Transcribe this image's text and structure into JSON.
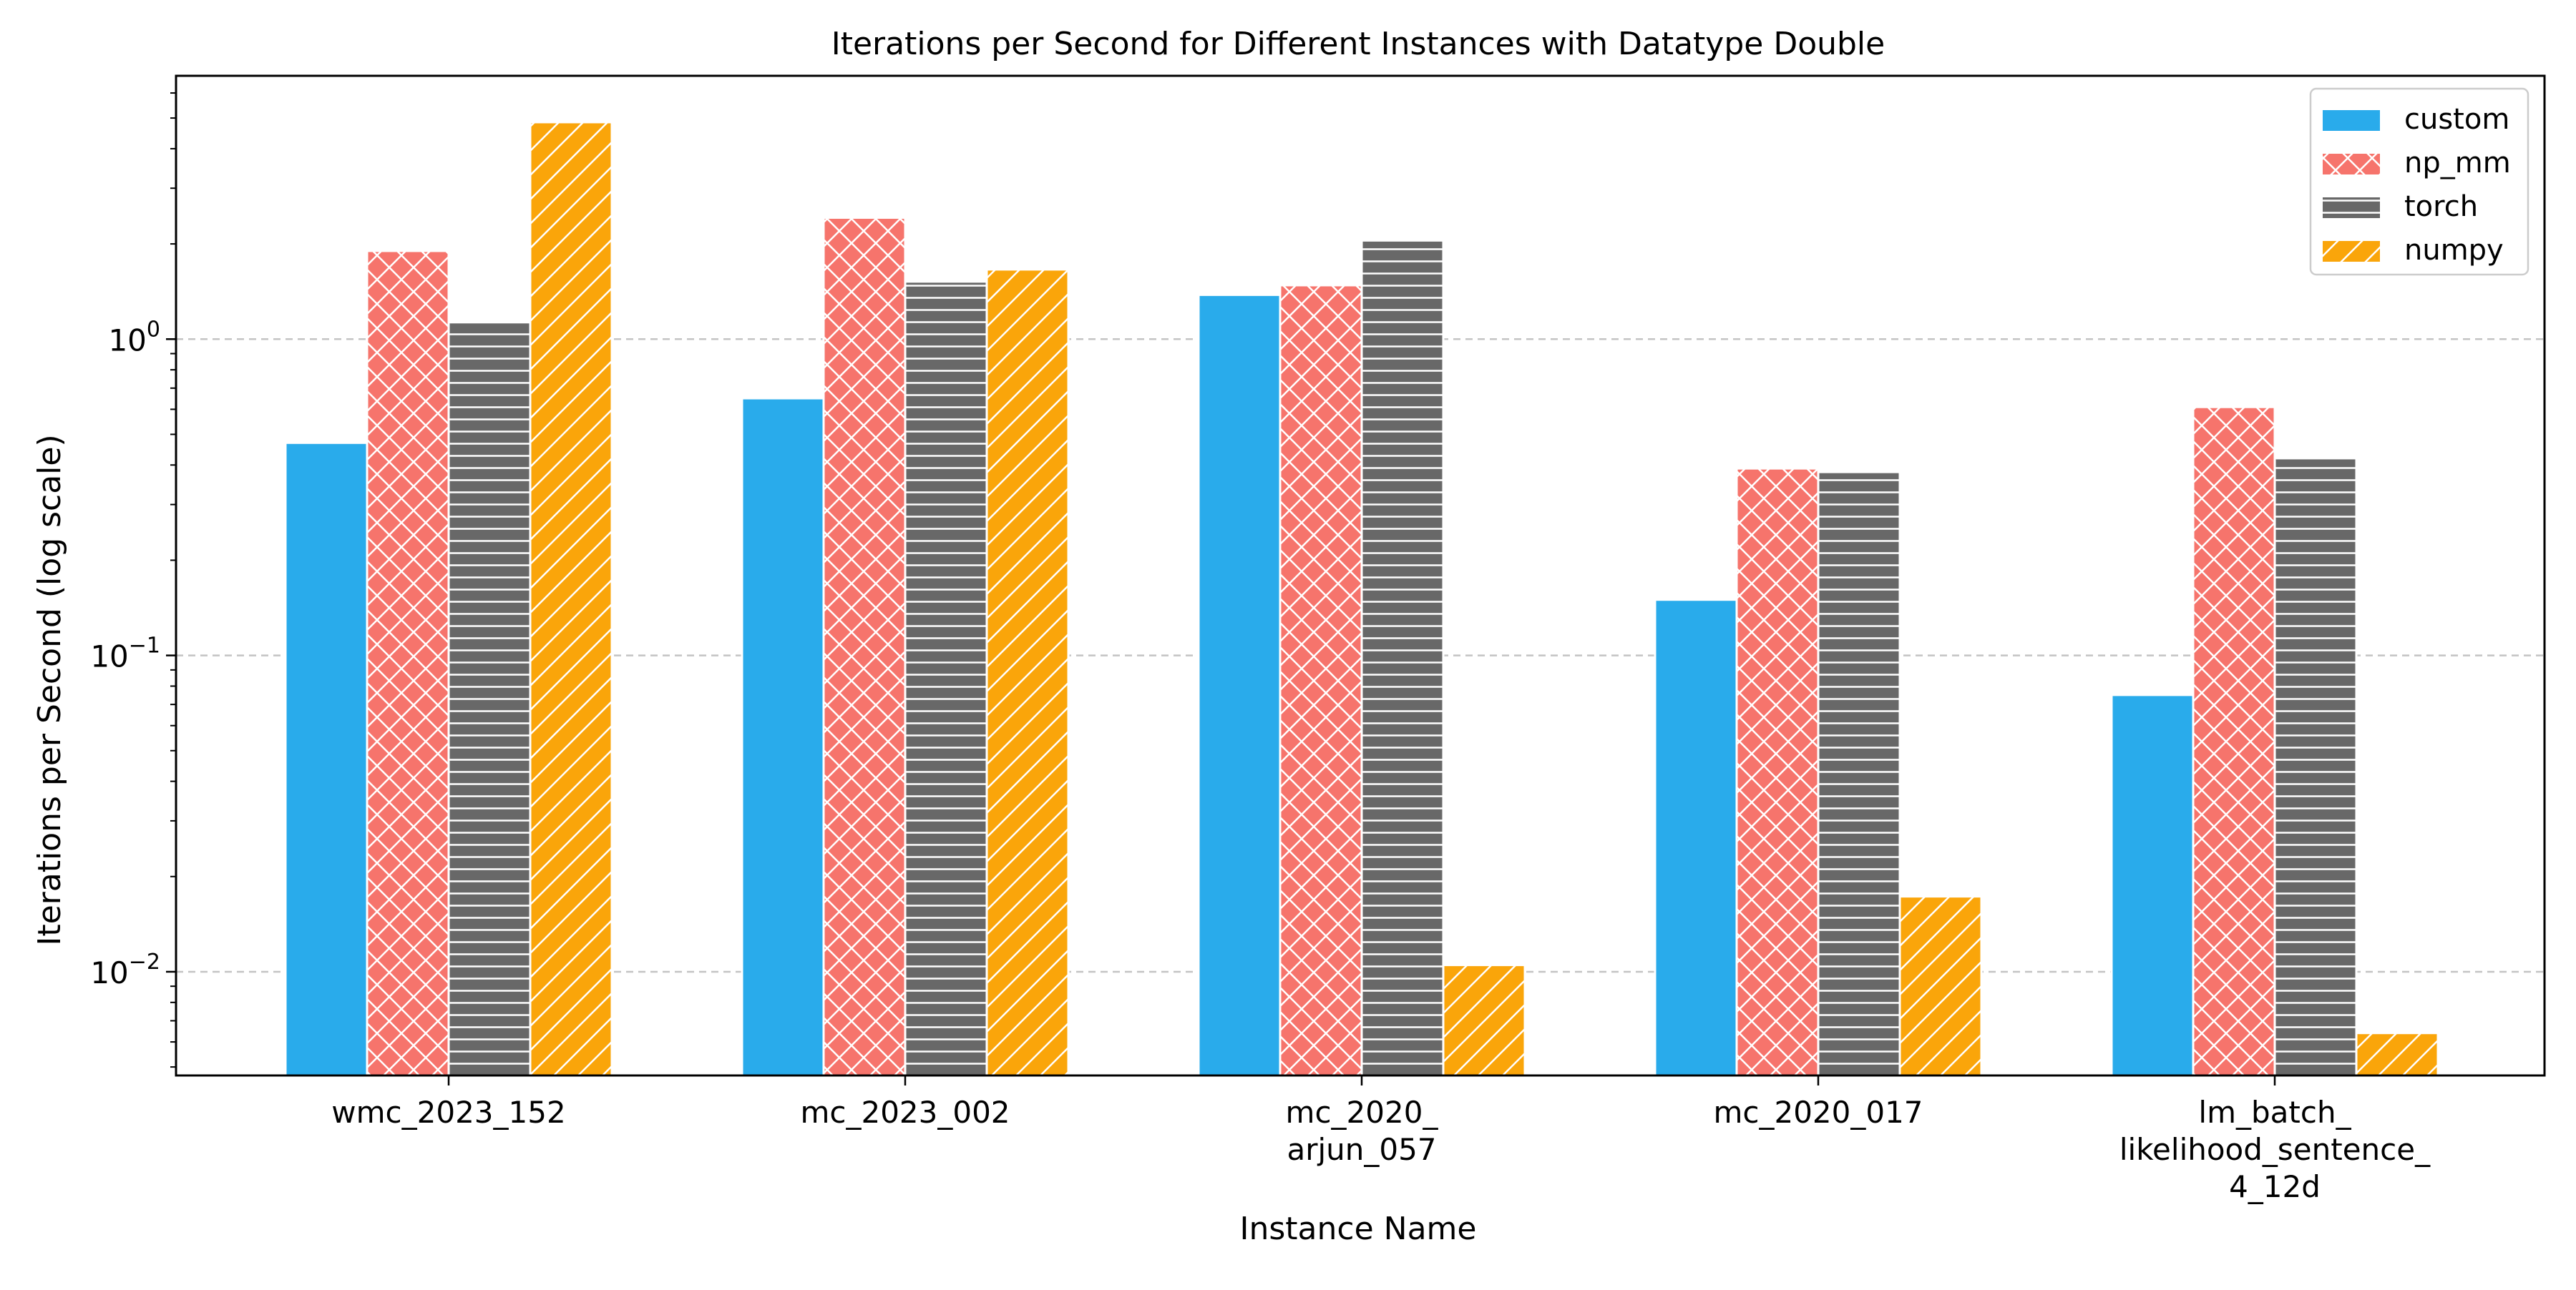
{
  "chart_data": {
    "type": "bar",
    "title": "Iterations per Second for Different Instances with Datatype Double",
    "xlabel": "Instance Name",
    "ylabel": "Iterations per Second (log scale)",
    "yscale": "log",
    "ylim": [
      0.0047,
      6.8
    ],
    "yticks": [
      {
        "value": 1,
        "base": "10",
        "exp": "0"
      },
      {
        "value": 0.1,
        "base": "10",
        "exp": "−1"
      },
      {
        "value": 0.01,
        "base": "10",
        "exp": "−2"
      }
    ],
    "grid": "horizontal dashed",
    "legend_position": "top-right",
    "categories": [
      [
        "wmc_2023_152"
      ],
      [
        "mc_2023_002"
      ],
      [
        "mc_2020_",
        "arjun_057"
      ],
      [
        "mc_2020_017"
      ],
      [
        "lm_batch_",
        "likelihood_sentence_",
        "4_12d"
      ]
    ],
    "series": [
      {
        "name": "custom",
        "color": "#29abeb",
        "pattern": "solid",
        "values": [
          0.47,
          0.65,
          1.38,
          0.15,
          0.075
        ]
      },
      {
        "name": "np_mm",
        "color": "#f6746c",
        "pattern": "crosshatch",
        "values": [
          1.9,
          2.42,
          1.48,
          0.39,
          0.61
        ]
      },
      {
        "name": "torch",
        "color": "#686868",
        "pattern": "horizontal",
        "values": [
          1.13,
          1.52,
          2.05,
          0.38,
          0.42
        ]
      },
      {
        "name": "numpy",
        "color": "#faa50a",
        "pattern": "diagonal",
        "values": [
          4.85,
          1.66,
          0.0105,
          0.0173,
          0.0064
        ]
      }
    ]
  }
}
